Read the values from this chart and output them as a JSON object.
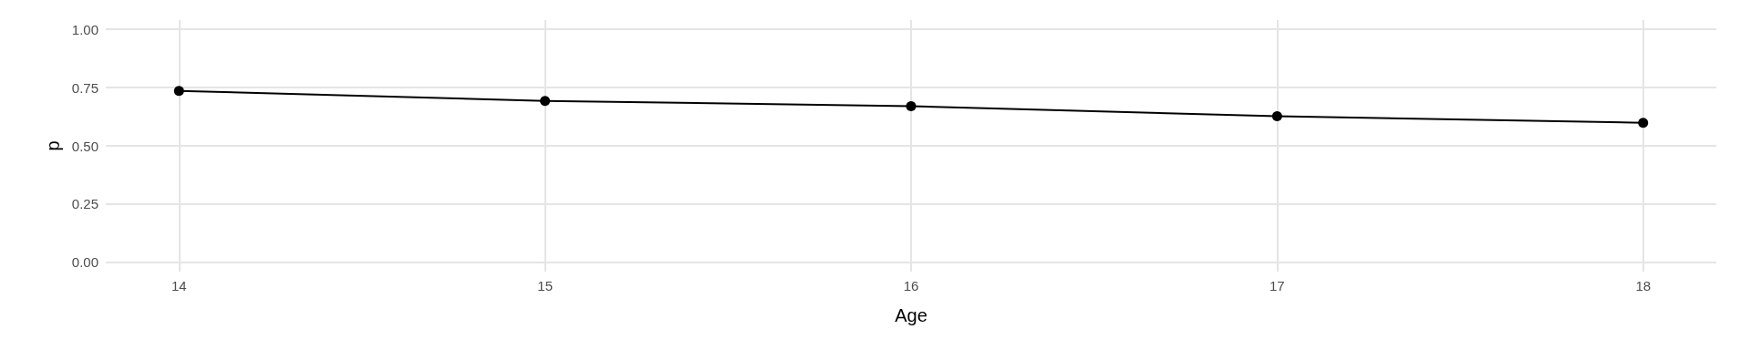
{
  "chart_data": {
    "type": "line",
    "xlabel": "Age",
    "ylabel": "p",
    "x": [
      14,
      15,
      16,
      17,
      18
    ],
    "series": [
      {
        "color": "#000000",
        "values": [
          0.736,
          0.693,
          0.67,
          0.627,
          0.599
        ]
      }
    ],
    "xlim": [
      13.8,
      18.2
    ],
    "xticks": [
      14,
      15,
      16,
      17,
      18
    ],
    "ylim": [
      -0.04,
      1.04
    ],
    "yticks": [
      {
        "value": 0,
        "label": "0.00"
      },
      {
        "value": 0.25,
        "label": "0.25"
      },
      {
        "value": 0.5,
        "label": "0.50"
      },
      {
        "value": 0.75,
        "label": "0.75"
      },
      {
        "value": 1,
        "label": "1.00"
      }
    ],
    "grid": true,
    "marker": "circle",
    "line_style": "solid"
  }
}
